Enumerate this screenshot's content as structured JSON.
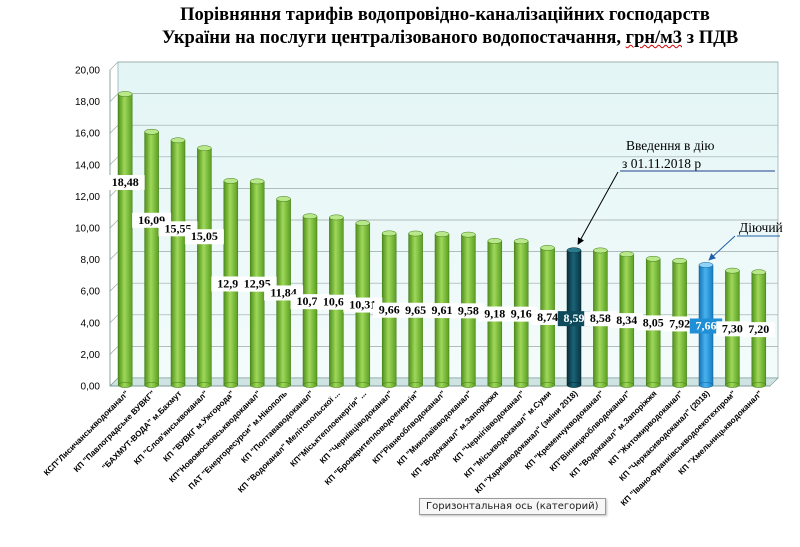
{
  "title_line1": "Порівняння тарифів водопровідно-каналізаційних господарств",
  "title_line2_main": "України на послуги централізованого водопостачання, ",
  "title_line2_unit": "грн/м3",
  "title_line2_tail": " з ПДВ",
  "tooltip": "Горизонтальная ось (категорий)",
  "colors": {
    "bar_green": "#7ec13a",
    "bar_dark": "#0d4a5c",
    "bar_blue": "#1f8fd6",
    "plot_bg": "#e8f6f6"
  },
  "chart_data": {
    "type": "bar",
    "ylim": [
      0,
      20
    ],
    "yticks": [
      "0,00",
      "2,00",
      "4,00",
      "6,00",
      "8,00",
      "10,00",
      "12,00",
      "14,00",
      "16,00",
      "18,00",
      "20,00"
    ],
    "grid": true,
    "categories": [
      "КСП\"Лисичанськводоканал\"",
      "КП \"Павлоградське ВУВКГ\"",
      "\"БАХМУТ-ВОДА\" м.Бахмут",
      "КП \"Слов'янськвоканал\"",
      "КП \"ВУВКГ м.Ужгорода\"",
      "КП\"Новомосковськводоканал\"",
      "ПАТ \"Енергоресурси\" м.Нікополь",
      "КП \"Полтававодоканал\"",
      "КП \"Водоканал\" Мелітопольскої ...",
      "КП\"Міськтеплоенергія\" ...",
      "КП \"Чернівціводоканал\"",
      "КП \"Броваритепловодоенергія\"",
      "КП\"Рівнеоблводоканал\"",
      "КП \"Миколаївводоканал\"",
      "КП \"Водоканал\" м.Запоріжжя",
      "КП \"Чернігівводоканал\"",
      "КП \"Міськводоканал\" м.Суми",
      "КП \"Харківводоканал\" (зміни 2018)",
      "КП \"Кременчукводоканал\"",
      "КП\"Вінницяоблводоканал\"",
      "КП \"Водоканал\" м.Запоріжжя",
      "КП \"Житомирводоканал\"",
      "КП \"Черкасиводоканал\" (2018)",
      "КП \"Івано-Франківськводоекотехпром\"",
      "КП \"Хмельницькводоканал\""
    ],
    "values": [
      18.48,
      16.09,
      15.55,
      15.05,
      12.98,
      12.95,
      11.84,
      10.74,
      10.67,
      10.31,
      9.66,
      9.65,
      9.61,
      9.58,
      9.18,
      9.16,
      8.74,
      8.59,
      8.58,
      8.34,
      8.05,
      7.92,
      7.66,
      7.3,
      7.2
    ],
    "value_labels": [
      "18,48",
      "16,09",
      "15,55",
      "15,05",
      "12,98",
      "12,95",
      "11,84",
      "10,74",
      "10,67",
      "10,31",
      "9,66",
      "9,65",
      "9,61",
      "9,58",
      "9,18",
      "9,16",
      "8,74",
      "8,59",
      "8,58",
      "8,34",
      "8,05",
      "7,92",
      "7,66",
      "7,30",
      "7,20"
    ],
    "highlight": {
      "dark_index": 17,
      "blue_index": 22
    },
    "annotations": [
      {
        "text_line1": "Введення в дію",
        "text_line2": "з 01.11.2018  р",
        "target_index": 17
      },
      {
        "text": "Діючий",
        "target_index": 22
      }
    ]
  }
}
